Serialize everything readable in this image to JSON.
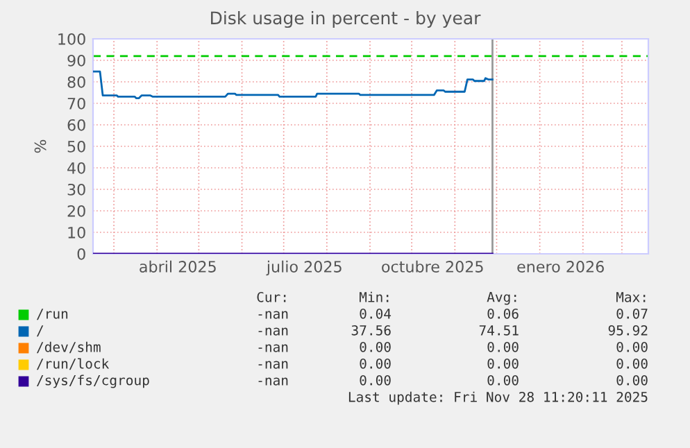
{
  "chart_data": {
    "type": "line",
    "title": "Disk usage in percent - by year",
    "ylabel": "%",
    "xlim": [
      "2025-02-14",
      "2026-03-20"
    ],
    "ylim": [
      0,
      100
    ],
    "yticks": [
      0,
      10,
      20,
      30,
      40,
      50,
      60,
      70,
      80,
      90,
      100
    ],
    "xticks": [
      {
        "value": "2025-03-01",
        "label": null
      },
      {
        "value": "2025-04-01",
        "label": null
      },
      {
        "value": "2025-04-16",
        "label": "abril 2025"
      },
      {
        "value": "2025-05-01",
        "label": null
      },
      {
        "value": "2025-06-01",
        "label": null
      },
      {
        "value": "2025-07-01",
        "label": null
      },
      {
        "value": "2025-07-16",
        "label": "julio 2025"
      },
      {
        "value": "2025-08-01",
        "label": null
      },
      {
        "value": "2025-09-01",
        "label": null
      },
      {
        "value": "2025-10-01",
        "label": null
      },
      {
        "value": "2025-10-16",
        "label": "octubre 2025"
      },
      {
        "value": "2025-11-01",
        "label": null
      },
      {
        "value": "2025-12-01",
        "label": null
      },
      {
        "value": "2026-01-01",
        "label": null
      },
      {
        "value": "2026-01-16",
        "label": "enero 2026"
      },
      {
        "value": "2026-02-01",
        "label": null
      },
      {
        "value": "2026-03-01",
        "label": null
      }
    ],
    "grid": true,
    "legend": "bottom",
    "marker": "none",
    "line_style": "solid",
    "series": [
      {
        "name": "/run",
        "color": "#00cc00"
      },
      {
        "name": "/",
        "color": "#0066b3",
        "x": [
          "2025-02-14",
          "2025-02-19",
          "2025-02-21",
          "2025-03-03",
          "2025-03-04",
          "2025-03-16",
          "2025-03-17",
          "2025-03-19",
          "2025-03-21",
          "2025-03-27",
          "2025-03-29",
          "2025-05-20",
          "2025-05-22",
          "2025-05-27",
          "2025-05-28",
          "2025-06-27",
          "2025-06-28",
          "2025-07-24",
          "2025-07-25",
          "2025-08-24",
          "2025-08-25",
          "2025-10-17",
          "2025-10-19",
          "2025-10-24",
          "2025-10-25",
          "2025-11-08",
          "2025-11-10",
          "2025-11-14",
          "2025-11-15",
          "2025-11-22",
          "2025-11-23",
          "2025-11-25",
          "2025-11-28"
        ],
        "values": [
          84.8,
          84.8,
          73.7,
          73.7,
          73.1,
          73.1,
          72.4,
          72.4,
          73.7,
          73.7,
          73.1,
          73.1,
          74.5,
          74.5,
          73.9,
          73.9,
          73.1,
          73.1,
          74.5,
          74.5,
          73.9,
          73.9,
          76.0,
          76.0,
          75.4,
          75.4,
          81.1,
          81.1,
          80.4,
          80.4,
          81.7,
          81.1,
          81.1
        ]
      },
      {
        "name": "/dev/shm",
        "color": "#ff8000"
      },
      {
        "name": "/run/lock",
        "color": "#ffcc00"
      },
      {
        "name": "/sys/fs/cgroup",
        "color": "#330099",
        "x": [
          "2025-02-14",
          "2025-11-28"
        ],
        "values": [
          0,
          0
        ]
      }
    ],
    "ref_lines": [
      {
        "axis": "y",
        "value": 92,
        "label": null,
        "color": "#00cc00",
        "line_style": "dashed"
      },
      {
        "axis": "x",
        "value": "2025-11-28",
        "label": null,
        "color": "#999999",
        "line_style": "solid"
      }
    ],
    "annotations": [
      "Cur:",
      "Min:",
      "Avg:",
      "Max:",
      "-nan",
      "0.04",
      "0.06",
      "0.07",
      "-nan",
      "37.56",
      "74.51",
      "95.92",
      "-nan",
      "0.00",
      "0.00",
      "0.00",
      "-nan",
      "0.00",
      "0.00",
      "0.00",
      "-nan",
      "0.00",
      "0.00",
      "0.00",
      "Last update: Fri Nov 28 11:20:11 2025"
    ]
  }
}
